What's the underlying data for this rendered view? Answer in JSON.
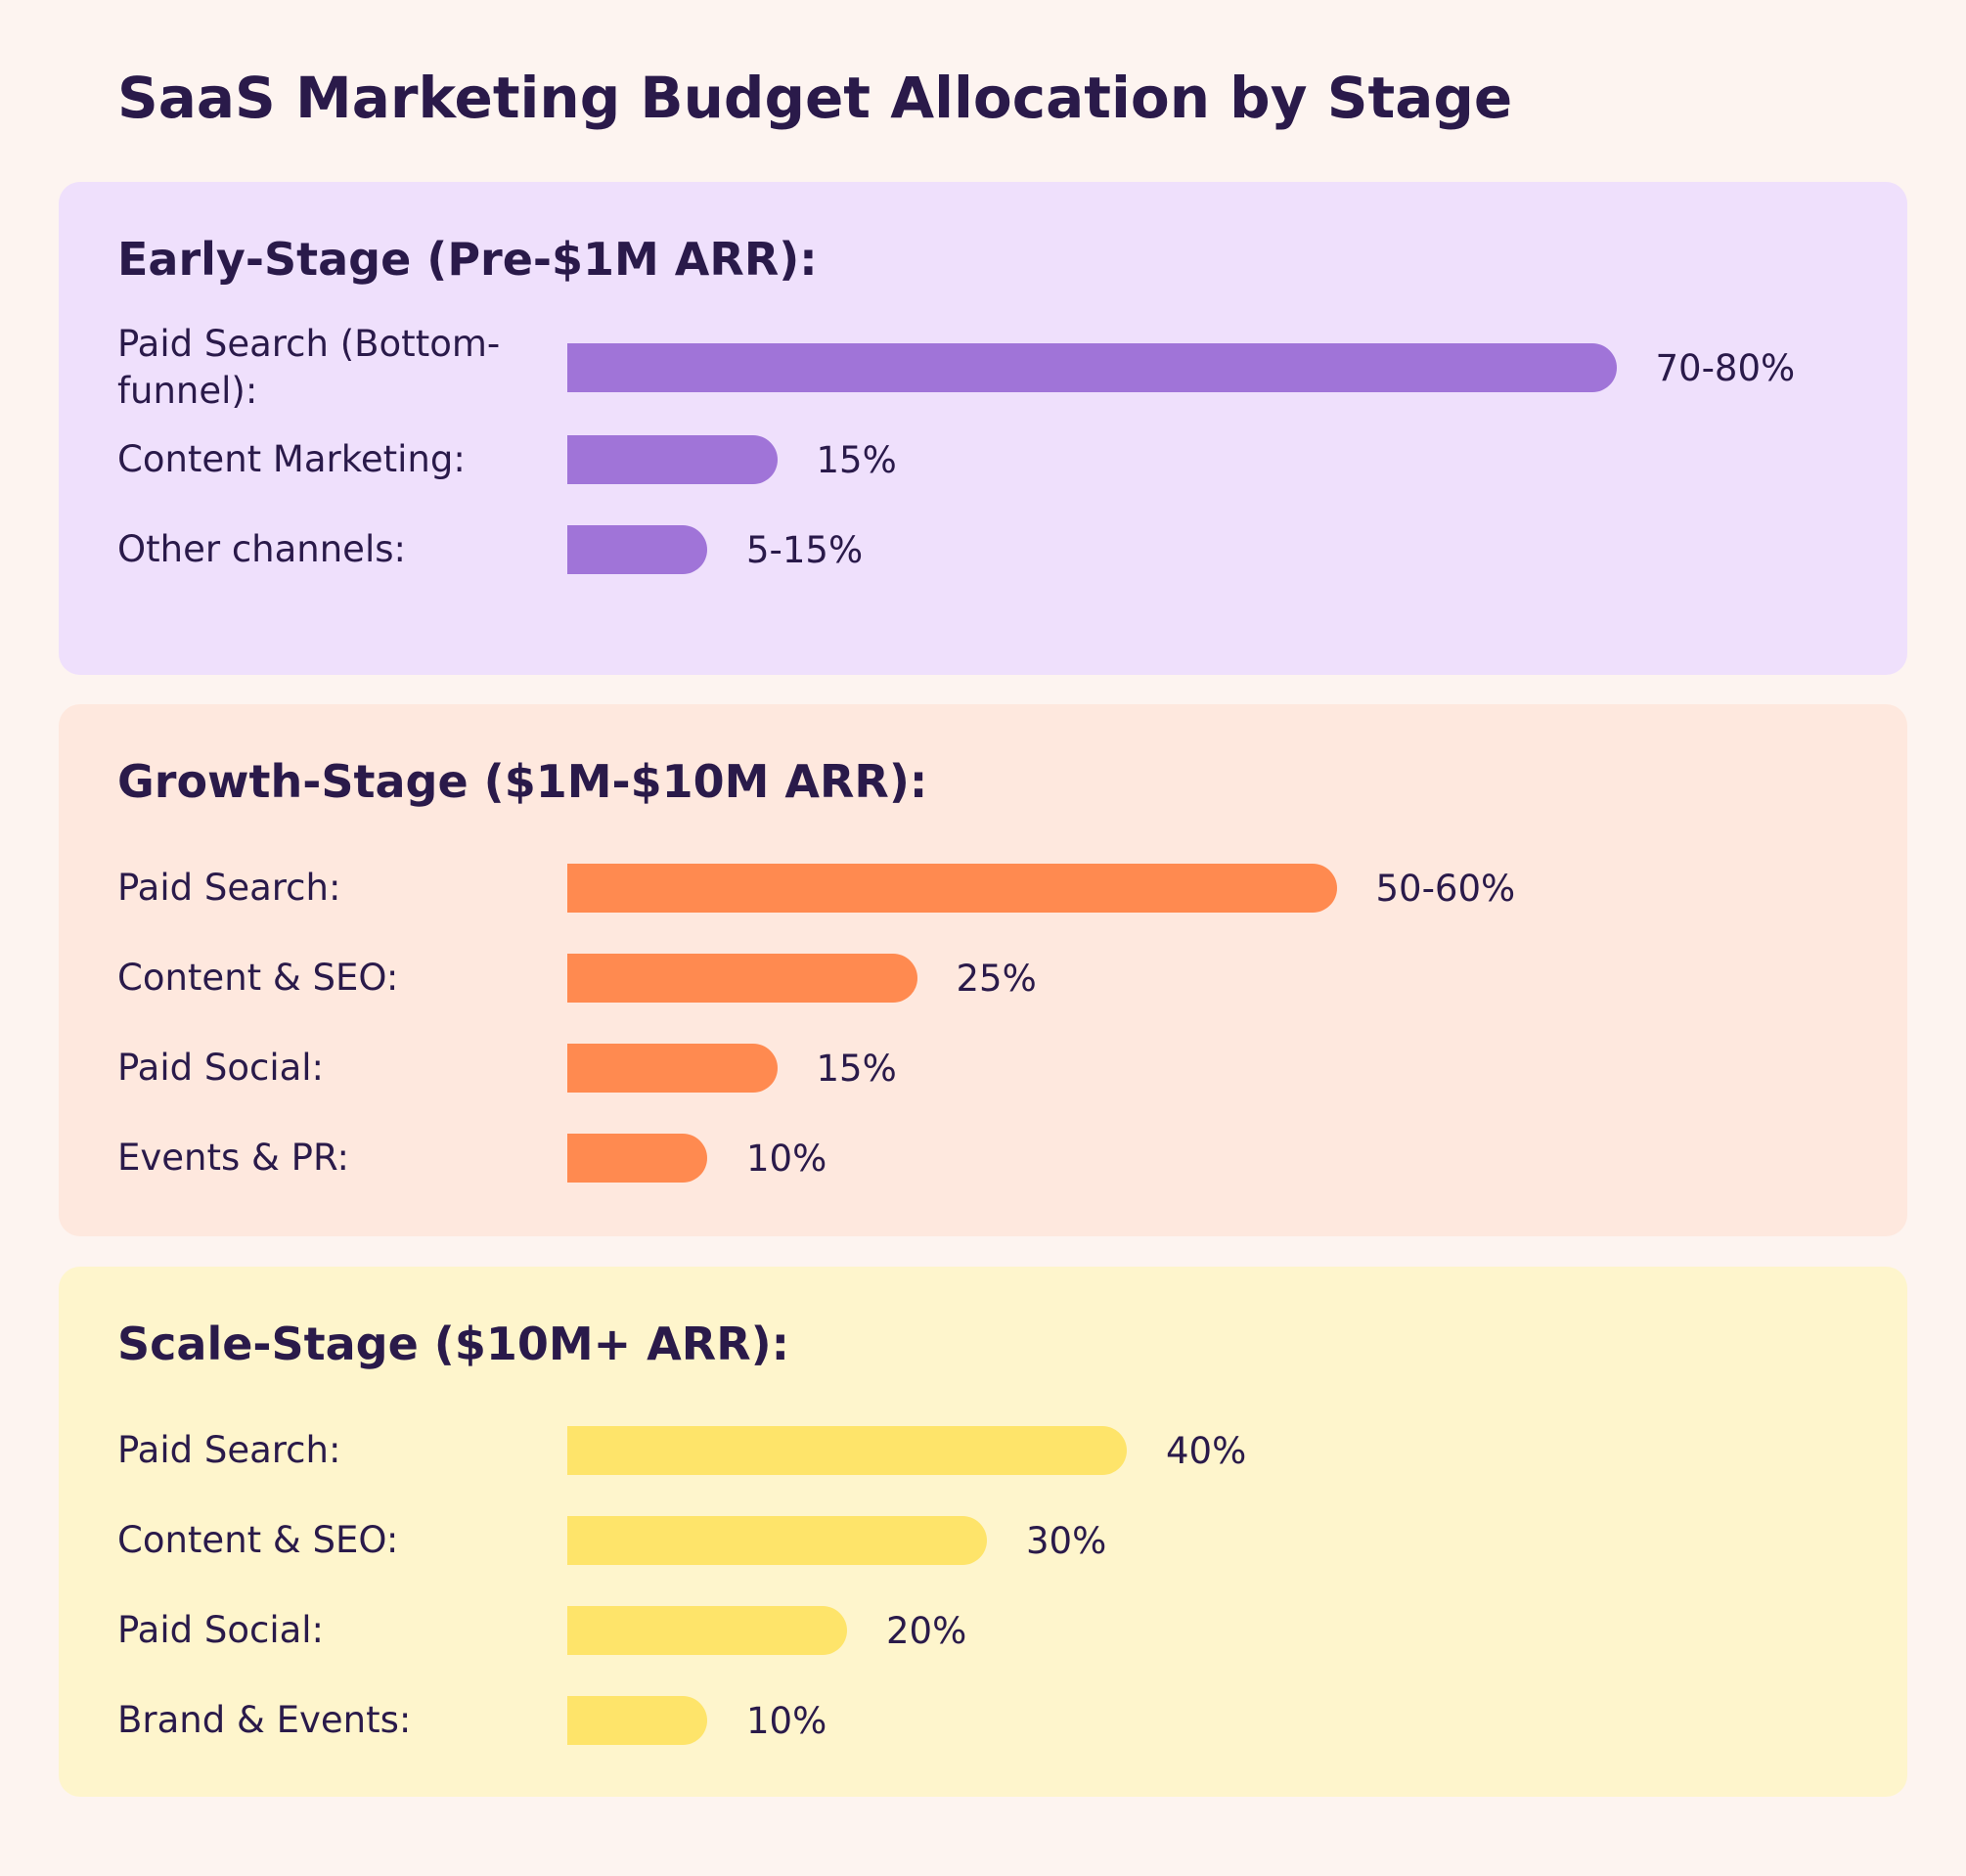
{
  "title": "SaaS Marketing Budget Allocation by Stage",
  "chart_data": [
    {
      "type": "bar",
      "title": "Early-Stage (Pre-$1M ARR):",
      "color": "#a074d8",
      "categories": [
        "Paid Search (Bottom-funnel):",
        "Content Marketing:",
        "Other channels:"
      ],
      "values": [
        75,
        15,
        10
      ],
      "value_labels": [
        "70-80%",
        "15%",
        "5-15%"
      ]
    },
    {
      "type": "bar",
      "title": "Growth-Stage ($1M-$10M ARR):",
      "color": "#ff8a50",
      "categories": [
        "Paid Search:",
        "Content & SEO:",
        "Paid Social:",
        "Events & PR:"
      ],
      "values": [
        55,
        25,
        15,
        10
      ],
      "value_labels": [
        "50-60%",
        "25%",
        "15%",
        "10%"
      ]
    },
    {
      "type": "bar",
      "title": "Scale-Stage ($10M+ ARR):",
      "color": "#fee46a",
      "categories": [
        "Paid Search:",
        "Content & SEO:",
        "Paid Social:",
        "Brand & Events:"
      ],
      "values": [
        40,
        30,
        20,
        10
      ],
      "value_labels": [
        "40%",
        "30%",
        "20%",
        "10%"
      ]
    }
  ]
}
